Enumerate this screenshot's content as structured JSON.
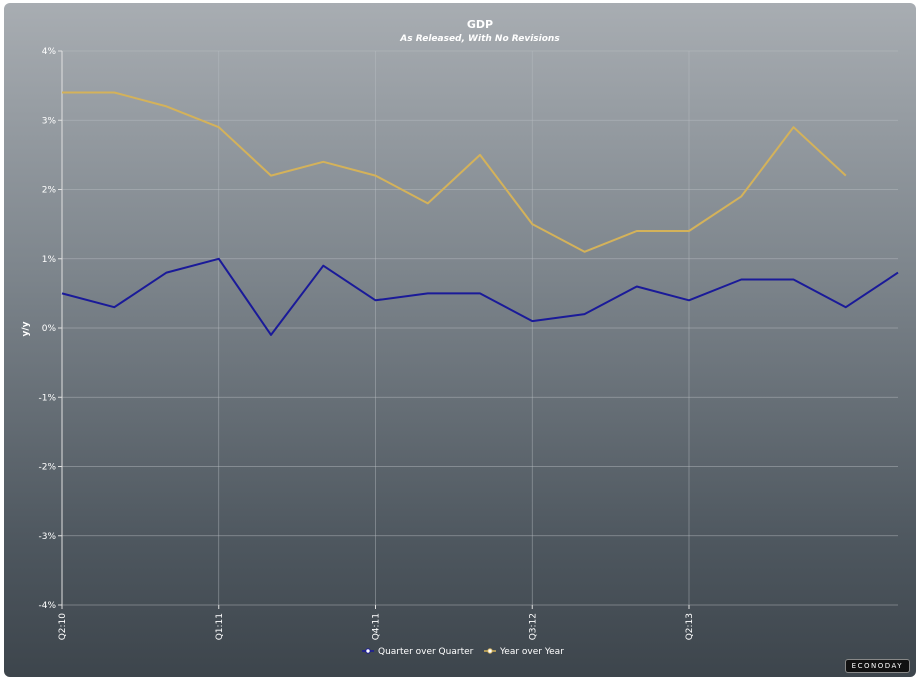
{
  "chart_data": {
    "type": "line",
    "title": "GDP",
    "subtitle": "As Released, With No Revisions",
    "ylabel": "y/y",
    "xlabel": "",
    "ylim": [
      -4,
      4
    ],
    "y_ticks": [
      4,
      3,
      2,
      1,
      0,
      -1,
      -2,
      -3,
      -4
    ],
    "y_tick_labels": [
      "4%",
      "3%",
      "2%",
      "1%",
      "0%",
      "-1%",
      "-2%",
      "-3%",
      "-4%"
    ],
    "x_count": 17,
    "x_tick_labels": [
      {
        "index": 0,
        "label": "Q2:10"
      },
      {
        "index": 3,
        "label": "Q1:11"
      },
      {
        "index": 6,
        "label": "Q4:11"
      },
      {
        "index": 9,
        "label": "Q3:12"
      },
      {
        "index": 12,
        "label": "Q2:13"
      }
    ],
    "grid": true,
    "legend_position": "bottom-center",
    "series": [
      {
        "name": "Quarter over Quarter",
        "color": "#1a1a99",
        "values": [
          0.5,
          0.3,
          0.8,
          1.0,
          -0.1,
          0.9,
          0.4,
          0.5,
          0.5,
          0.1,
          0.2,
          0.6,
          0.4,
          0.7,
          0.7,
          0.3,
          0.8
        ]
      },
      {
        "name": "Year over Year",
        "color": "#d4b25a",
        "values": [
          3.4,
          3.4,
          3.2,
          2.9,
          2.2,
          2.4,
          2.2,
          1.8,
          2.5,
          1.5,
          1.1,
          1.4,
          1.4,
          1.9,
          2.9,
          2.2,
          null
        ]
      }
    ]
  },
  "watermark": "ECONODAY"
}
